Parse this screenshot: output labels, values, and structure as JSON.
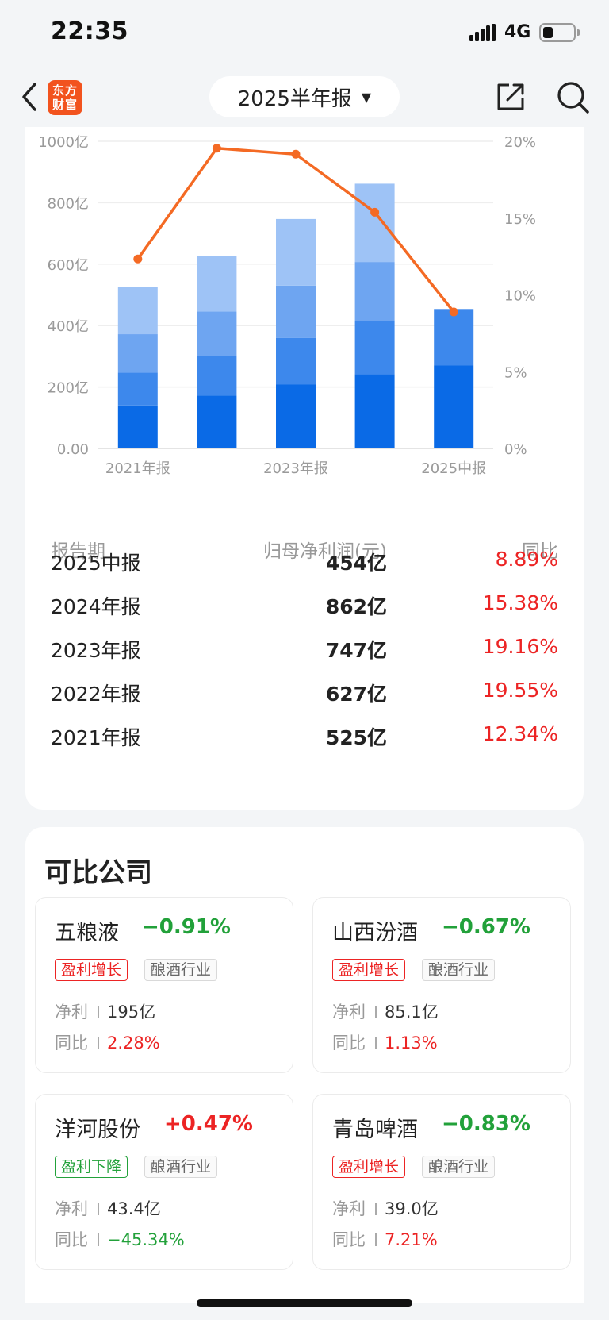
{
  "status_bar": {
    "time": "22:35",
    "network": "4G"
  },
  "nav": {
    "logo_line1": "东方",
    "logo_line2": "财富",
    "period_selector": "2025半年报"
  },
  "chart_data": {
    "type": "bar",
    "categories": [
      "2021年报",
      "2022年报",
      "2023年报",
      "2024年报",
      "2025中报"
    ],
    "x_tick_labels": [
      "2021年报",
      "2023年报",
      "2025中报"
    ],
    "y_tick_labels": [
      "1000亿",
      "800亿",
      "600亿",
      "400亿",
      "200亿",
      "0.00"
    ],
    "y2_tick_labels": [
      "20%",
      "15%",
      "10%",
      "5%",
      "0%"
    ],
    "ylim": [
      0,
      1000
    ],
    "y2lim": [
      0,
      20
    ],
    "bar_stacks": [
      [
        140,
        107,
        125,
        153
      ],
      [
        172,
        128,
        146,
        181
      ],
      [
        208,
        152,
        170,
        217
      ],
      [
        242,
        175,
        190,
        255
      ],
      [
        270,
        184
      ]
    ],
    "bar_totals": [
      525,
      627,
      747,
      862,
      454
    ],
    "line_series": {
      "values": [
        12.34,
        19.55,
        19.16,
        15.38,
        8.89
      ]
    },
    "colors": {
      "bar_layers": [
        "#0a6ae6",
        "#3d88ec",
        "#6ea5f1",
        "#9ec3f6"
      ],
      "line": "#f46a24"
    },
    "grid": true
  },
  "table": {
    "headers": {
      "period": "报告期",
      "value": "归母净利润(元)",
      "yoy": "同比"
    },
    "rows": [
      {
        "period": "2025中报",
        "value": "454亿",
        "yoy": "8.89%"
      },
      {
        "period": "2024年报",
        "value": "862亿",
        "yoy": "15.38%"
      },
      {
        "period": "2023年报",
        "value": "747亿",
        "yoy": "19.16%"
      },
      {
        "period": "2022年报",
        "value": "627亿",
        "yoy": "19.55%"
      },
      {
        "period": "2021年报",
        "value": "525亿",
        "yoy": "12.34%"
      }
    ]
  },
  "comparables": {
    "title": "可比公司",
    "net_label": "净利",
    "yoy_label": "同比",
    "companies": [
      {
        "name": "五粮液",
        "change": "−0.91%",
        "tag": "盈利增长",
        "industry": "酿酒行业",
        "net": "195亿",
        "yoy": "2.28%"
      },
      {
        "name": "山西汾酒",
        "change": "−0.67%",
        "tag": "盈利增长",
        "industry": "酿酒行业",
        "net": "85.1亿",
        "yoy": "1.13%"
      },
      {
        "name": "洋河股份",
        "change": "+0.47%",
        "tag": "盈利下降",
        "industry": "酿酒行业",
        "net": "43.4亿",
        "yoy": "−45.34%"
      },
      {
        "name": "青岛啤酒",
        "change": "−0.83%",
        "tag": "盈利增长",
        "industry": "酿酒行业",
        "net": "39.0亿",
        "yoy": "7.21%"
      }
    ]
  },
  "colors": {
    "up": "#ec2424",
    "down": "#22a13a",
    "brand": "#f2531e"
  }
}
